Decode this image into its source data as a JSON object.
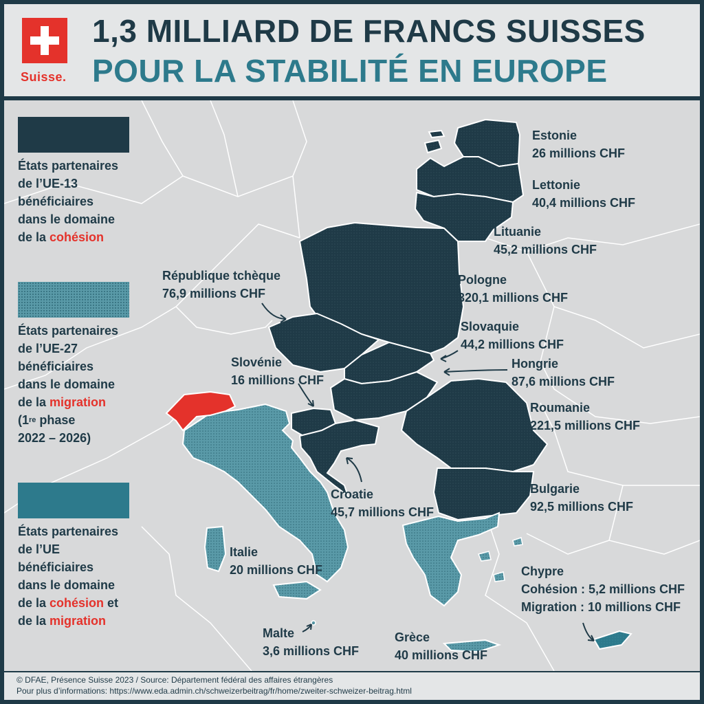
{
  "header": {
    "flag_word": "Suisse.",
    "title_line1": "1,3 MILLIARD DE FRANCS SUISSES",
    "title_line2": "POUR LA STABILITÉ EN EUROPE"
  },
  "legend": [
    {
      "line1": "États partenaires",
      "line2": "de l’UE-13",
      "line3": "bénéficiaires",
      "line4": "dans le domaine",
      "line5_pre": "de la ",
      "line5_hl": "cohésion"
    },
    {
      "line1": "États partenaires",
      "line2": "de l’UE-27",
      "line3": "bénéficiaires",
      "line4": "dans le domaine",
      "line5_pre": "de la ",
      "line5_hl": "migration",
      "line6_pre": "(1",
      "line6_sup": "re",
      "line6_post": " phase",
      "line7": "2022 – 2026)"
    },
    {
      "line1": "États partenaires",
      "line2": "de l’UE",
      "line3": "bénéficiaires",
      "line4": "dans le domaine",
      "line5_pre": "de la ",
      "line5_hl": "cohésion",
      "line5_post": " et",
      "line6_pre": "de la ",
      "line6_hl": "migration"
    }
  ],
  "countries": {
    "estonie": {
      "name": "Estonie",
      "amount": "26 millions CHF"
    },
    "lettonie": {
      "name": "Lettonie",
      "amount": "40,4 millions CHF"
    },
    "lituanie": {
      "name": "Lituanie",
      "amount": "45,2 millions CHF"
    },
    "pologne": {
      "name": "Pologne",
      "amount": "320,1 millions CHF"
    },
    "tcheque": {
      "name": "République tchèque",
      "amount": "76,9 millions CHF"
    },
    "slovaquie": {
      "name": "Slovaquie",
      "amount": "44,2 millions CHF"
    },
    "hongrie": {
      "name": "Hongrie",
      "amount": "87,6 millions CHF"
    },
    "slovenie": {
      "name": "Slovénie",
      "amount": "16 millions CHF"
    },
    "roumanie": {
      "name": "Roumanie",
      "amount": "221,5 millions CHF"
    },
    "croatie": {
      "name": "Croatie",
      "amount": "45,7 millions CHF"
    },
    "bulgarie": {
      "name": "Bulgarie",
      "amount": "92,5 millions CHF"
    },
    "italie": {
      "name": "Italie",
      "amount": "20 millions CHF"
    },
    "chypre": {
      "name": "Chypre",
      "cohesion": "Cohésion : 5,2 millions CHF",
      "migration": "Migration : 10 millions CHF"
    },
    "malte": {
      "name": "Malte",
      "amount": "3,6 millions CHF"
    },
    "grece": {
      "name": "Grèce",
      "amount": "40 millions CHF"
    }
  },
  "colors": {
    "cohesion_dark": "#1f3a47",
    "migration_light": "#5a9aa8",
    "both_medium": "#2d7a8c",
    "switzerland": "#e4322b",
    "accent_red": "#e4322b"
  },
  "footer": {
    "line1": "© DFAE, Présence Suisse 2023 / Source: Département fédéral des affaires étrangères",
    "line2": "Pour plus d’informations: https://www.eda.admin.ch/schweizerbeitrag/fr/home/zweiter-schweizer-beitrag.html"
  }
}
